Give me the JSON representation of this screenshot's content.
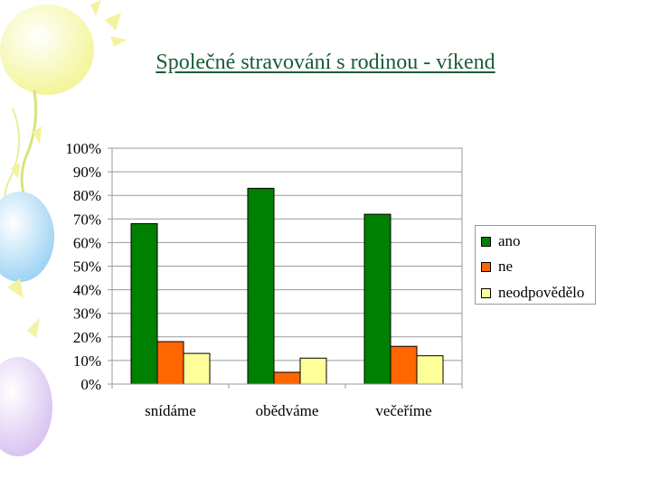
{
  "slide": {
    "title": "Společné stravování s rodinou - víkend"
  },
  "chart_data": {
    "type": "bar",
    "title": "",
    "xlabel": "",
    "ylabel": "",
    "categories": [
      "snídáme",
      "obědváme",
      "večeříme"
    ],
    "series": [
      {
        "name": "ano",
        "color": "#008000",
        "values": [
          68,
          83,
          72
        ]
      },
      {
        "name": "ne",
        "color": "#ff6600",
        "values": [
          18,
          5,
          16
        ]
      },
      {
        "name": "neodpovědělo",
        "color": "#ffff99",
        "values": [
          13,
          11,
          12
        ]
      }
    ],
    "ylim": [
      0,
      100
    ],
    "y_ticks": [
      "0%",
      "10%",
      "20%",
      "30%",
      "40%",
      "50%",
      "60%",
      "70%",
      "80%",
      "90%",
      "100%"
    ],
    "grid": true,
    "legend_position": "right"
  }
}
